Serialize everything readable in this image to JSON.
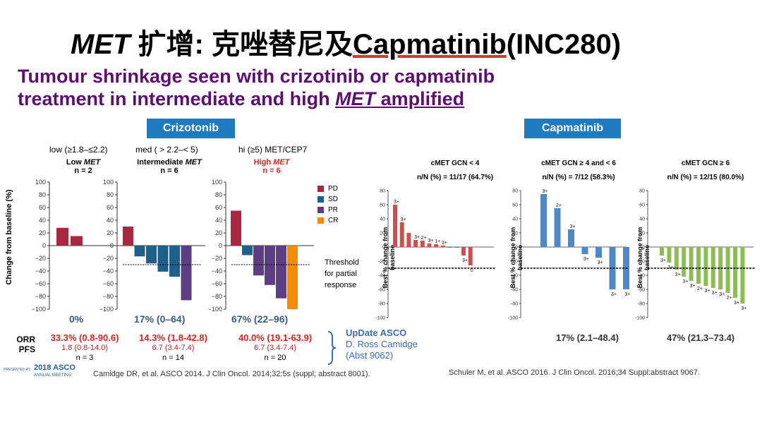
{
  "slide": {
    "title_italic": "MET",
    "title_cn": " 扩增: 克唑替尼及",
    "title_en": "Capmatinib",
    "title_tail": "(INC280)",
    "subtitle_line1": "Tumour shrinkage seen with crizotinib or capmatinib",
    "subtitle_line2_pre": "treatment in intermediate and high ",
    "subtitle_line2_met": "MET",
    "subtitle_line2_post": " amplified",
    "crizotinib_header": "Crizotonib",
    "capmatinib_header": "Capmatinib",
    "criz_ranges": [
      "low (≥1.8–≤2.2)",
      "med ( > 2.2–< 5)",
      "hi (≥5) MET/CEP7"
    ],
    "criz_groups": [
      {
        "name_pre": "Low ",
        "name_it": "MET",
        "n": "n = 2"
      },
      {
        "name_pre": "Intermediate ",
        "name_it": "MET",
        "n": "n = 6"
      },
      {
        "name_pre": "High ",
        "name_it": "MET",
        "n": "n = 6"
      }
    ],
    "criz_ylabel": "Change from baseline (%)",
    "criz_pct": [
      "0%",
      "17% (0–64)",
      "67% (22–96)"
    ],
    "threshold_label": [
      "Threshold",
      "for partial",
      "response"
    ],
    "legend": [
      {
        "label": "PD",
        "color": "#a8293f"
      },
      {
        "label": "SD",
        "color": "#1f5f8b"
      },
      {
        "label": "PR",
        "color": "#5e3e82"
      },
      {
        "label": "CR",
        "color": "#f28a0a"
      }
    ],
    "orr_label": "ORR",
    "pfs_label": "PFS",
    "orr": [
      "33.3% (0.8-90.6)",
      "14.3% (1.8-42.8)",
      "40.0% (19.1-63.9)"
    ],
    "pfs": [
      "1.8 (0.8-14.0)",
      "6.7 (3.4-7.4)",
      "6.7 (3.4-7.4)"
    ],
    "n_vals": [
      "n = 3",
      "n = 14",
      "n = 20"
    ],
    "update_text": [
      "UpDate ASCO",
      "D. Ross Camidge",
      "(Abst 9062)"
    ],
    "cite_left": "Camidge DR, et al. ASCO 2014.  J Clin Oncol. 2014;32:5s (suppl; abstract 8001).",
    "cite_right": "Schuler M, et al. ASCO 2016. J Clin Oncol. 2016;34 Suppl:abstract 9067.",
    "asco_logo_pre": "PRESENTED AT:",
    "asco_logo_year": "2018 ASCO",
    "asco_logo_sub": "ANNUAL MEETING",
    "cap_titles": [
      [
        "cMET GCN < 4",
        "n/N (%) = 11/17 (64.7%)"
      ],
      [
        "cMET GCN ≥ 4 and < 6",
        "n/N (%) = 7/12 (58.3%)"
      ],
      [
        "cMET GCN ≥ 6",
        "n/N (%) = 12/15 (80.0%)"
      ]
    ],
    "cap_ylabel": [
      "Best % change from",
      "baseline"
    ],
    "cap_stats": [
      "17% (2.1–48.4)",
      "47% (21.3–73.4)"
    ]
  },
  "chart_data": [
    {
      "type": "bar",
      "title": "Low MET n = 2",
      "ylim": [
        -100,
        100
      ],
      "ylabel": "Change from baseline (%)",
      "values": [
        28,
        15
      ],
      "categories": [
        "PD",
        "PD"
      ]
    },
    {
      "type": "bar",
      "title": "Intermediate MET n = 6",
      "ylim": [
        -100,
        100
      ],
      "values": [
        30,
        -17,
        -28,
        -41,
        -49,
        -86
      ],
      "categories": [
        "PD",
        "SD",
        "SD",
        "SD",
        "SD",
        "PR"
      ],
      "threshold": -30
    },
    {
      "type": "bar",
      "title": "High MET n = 6",
      "ylim": [
        -100,
        100
      ],
      "values": [
        55,
        -15,
        -47,
        -62,
        -83,
        -100
      ],
      "categories": [
        "PD",
        "SD",
        "PR",
        "PR",
        "PR",
        "CR"
      ],
      "threshold": -30
    },
    {
      "type": "bar",
      "title": "cMET GCN < 4",
      "ylim": [
        -100,
        80
      ],
      "color": "#c9514f",
      "values": [
        60,
        35,
        20,
        10,
        9,
        5,
        4,
        2,
        0,
        -1,
        -12,
        -26
      ],
      "labels": [
        "3+",
        "3+",
        "",
        "3+",
        "2+",
        "3+",
        "1+",
        "3+",
        "",
        "",
        "3+",
        "0"
      ],
      "threshold": -30
    },
    {
      "type": "bar",
      "title": "cMET GCN ≥ 4 and < 6",
      "ylim": [
        -100,
        80
      ],
      "color": "#4f88c6",
      "values": [
        75,
        55,
        25,
        -10,
        -15,
        -60,
        -60
      ],
      "labels": [
        "3+",
        "2+",
        "3+",
        "3+",
        "3+",
        "3+",
        "3+"
      ],
      "threshold": -30
    },
    {
      "type": "bar",
      "title": "cMET GCN ≥ 6",
      "ylim": [
        -100,
        80
      ],
      "color": "#8cbd52",
      "values": [
        -12,
        -22,
        -32,
        -42,
        -48,
        -52,
        -55,
        -58,
        -60,
        -65,
        -72,
        -80
      ],
      "labels": [
        "3+",
        "3+",
        "3+",
        "3+",
        "3+",
        "2+",
        "3+",
        "3+",
        "3+",
        "2+",
        "3+",
        "3+"
      ],
      "threshold": -30
    }
  ]
}
